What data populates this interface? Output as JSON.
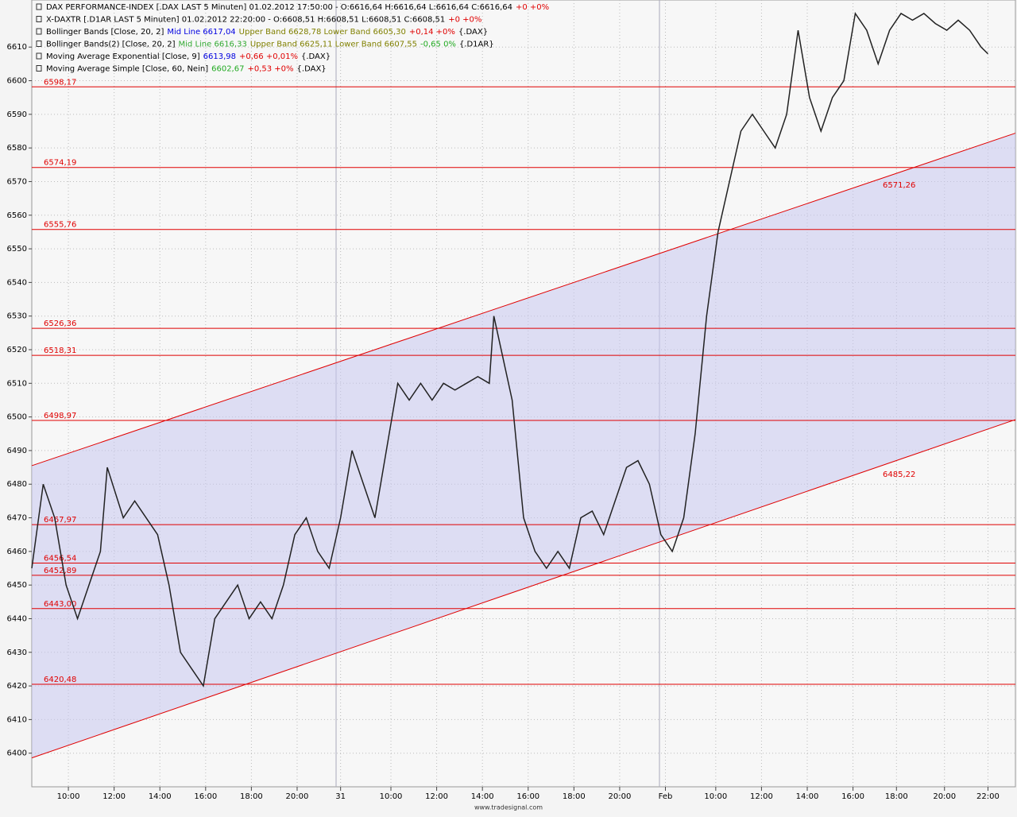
{
  "chart_data": {
    "type": "line",
    "legend": [
      {
        "parts": [
          "DAX PERFORMANCE-INDEX [.DAX LAST 5 Minuten] 01.02.2012 17:50:00 - O:6616,64 H:6616,64 L:6616,64 C:6616,64",
          "+0 +0%"
        ],
        "colors": [
          "#000000",
          "#e00000"
        ]
      },
      {
        "parts": [
          "X-DAXTR [.D1AR LAST 5 Minuten] 01.02.2012 22:20:00 - O:6608,51 H:6608,51 L:6608,51 C:6608,51",
          "+0 +0%"
        ],
        "colors": [
          "#000000",
          "#e00000"
        ]
      },
      {
        "parts": [
          "Bollinger Bands [Close, 20, 2]",
          "Mid Line 6617,04",
          "Upper Band 6628,78 Lower Band 6605,30",
          "+0,14 +0%",
          "{.DAX}"
        ],
        "colors": [
          "#000000",
          "#0000e0",
          "#808000",
          "#e00000",
          "#000000"
        ]
      },
      {
        "parts": [
          "Bollinger Bands(2) [Close, 20, 2]",
          "Mid Line 6616,33",
          "Upper Band 6625,11 Lower Band 6607,55",
          "-0,65 0%",
          "{.D1AR}"
        ],
        "colors": [
          "#000000",
          "#33aa33",
          "#808000",
          "#22aa22",
          "#000000"
        ]
      },
      {
        "parts": [
          "Moving Average Exponential [Close, 9]",
          "6613,98",
          "+0,66 +0,01%",
          "{.DAX}"
        ],
        "colors": [
          "#000000",
          "#0000e0",
          "#e00000",
          "#000000"
        ]
      },
      {
        "parts": [
          "Moving Average Simple [Close, 60, Nein]",
          "6602,67",
          "+0,53 +0%",
          "{.DAX}"
        ],
        "colors": [
          "#000000",
          "#22aa22",
          "#e00000",
          "#000000"
        ]
      }
    ],
    "footer": "www.tradesignal.com",
    "xlim": [
      0,
      43
    ],
    "xticks": [
      {
        "value": 1.6,
        "label": "10:00"
      },
      {
        "value": 3.6,
        "label": "12:00"
      },
      {
        "value": 5.6,
        "label": "14:00"
      },
      {
        "value": 7.6,
        "label": "16:00"
      },
      {
        "value": 9.6,
        "label": "18:00"
      },
      {
        "value": 11.6,
        "label": "20:00"
      },
      {
        "value": 13.5,
        "label": "31"
      },
      {
        "value": 15.7,
        "label": "10:00"
      },
      {
        "value": 17.7,
        "label": "12:00"
      },
      {
        "value": 19.7,
        "label": "14:00"
      },
      {
        "value": 21.7,
        "label": "16:00"
      },
      {
        "value": 23.7,
        "label": "18:00"
      },
      {
        "value": 25.7,
        "label": "20:00"
      },
      {
        "value": 27.7,
        "label": "Feb"
      },
      {
        "value": 29.9,
        "label": "10:00"
      },
      {
        "value": 31.9,
        "label": "12:00"
      },
      {
        "value": 33.9,
        "label": "14:00"
      },
      {
        "value": 35.9,
        "label": "16:00"
      },
      {
        "value": 37.8,
        "label": "18:00"
      },
      {
        "value": 39.9,
        "label": "20:00"
      },
      {
        "value": 41.8,
        "label": "22:00"
      }
    ],
    "ylim": [
      6390,
      6624
    ],
    "yticks": [
      6400,
      6410,
      6420,
      6430,
      6440,
      6450,
      6460,
      6470,
      6480,
      6490,
      6500,
      6510,
      6520,
      6530,
      6540,
      6550,
      6560,
      6570,
      6580,
      6590,
      6600,
      6610
    ],
    "grid": true,
    "levels": {
      "values": [
        6598.17,
        6574.19,
        6555.76,
        6526.36,
        6518.31,
        6498.97,
        6467.97,
        6456.54,
        6452.89,
        6443,
        6420.48
      ],
      "value_labels": [
        "6598,17",
        "6574,19",
        "6555,76",
        "6526,36",
        "6518,31",
        "6498,97",
        "6467,97",
        "6456,54",
        "6452,89",
        "6443,00",
        "6420,48"
      ],
      "color": "#e00000"
    },
    "channel": {
      "x": [
        0,
        43
      ],
      "upper": [
        6485.5,
        6584.4
      ],
      "lower": [
        6398.6,
        6499.2
      ],
      "color": "#e00000",
      "fill": "#c8c8f0"
    },
    "annotations": [
      {
        "x": 37.2,
        "value": 6571.26,
        "label": "6571,26"
      },
      {
        "x": 37.2,
        "value": 6485.22,
        "label": "6485,22"
      }
    ],
    "series": [
      {
        "name": "DAX PERFORMANCE-INDEX",
        "color": "#222222",
        "x": [
          0,
          0.5,
          1,
          1.5,
          2,
          2.5,
          3,
          3.3,
          4,
          4.5,
          5,
          5.5,
          6,
          6.5,
          7,
          7.5,
          8,
          8.5,
          9,
          9.5,
          10,
          10.5,
          11,
          11.5,
          12,
          12.5,
          13,
          13.5,
          14,
          14.5,
          15,
          15.5,
          16,
          16.5,
          17,
          17.5,
          18,
          18.5,
          19,
          19.5,
          20,
          20.2,
          21,
          21.5,
          22,
          22.5,
          23,
          23.5,
          24,
          24.5,
          25,
          25.5,
          26,
          26.5,
          27,
          27.5,
          28,
          28.5,
          29,
          29.5,
          30,
          30.5,
          31,
          31.5,
          32,
          32.5,
          33,
          33.5,
          34,
          34.5,
          35,
          35.5,
          36,
          36.5,
          37,
          37.5,
          38,
          38.5,
          39,
          39.5,
          40,
          40.5,
          41,
          41.5,
          41.8
        ],
        "values": [
          6455,
          6480,
          6470,
          6450,
          6440,
          6450,
          6460,
          6485,
          6470,
          6475,
          6470,
          6465,
          6450,
          6430,
          6425,
          6420,
          6440,
          6445,
          6450,
          6440,
          6445,
          6440,
          6450,
          6465,
          6470,
          6460,
          6455,
          6470,
          6490,
          6480,
          6470,
          6490,
          6510,
          6505,
          6510,
          6505,
          6510,
          6508,
          6510,
          6512,
          6510,
          6530,
          6505,
          6470,
          6460,
          6455,
          6460,
          6455,
          6470,
          6472,
          6465,
          6475,
          6485,
          6487,
          6480,
          6465,
          6460,
          6470,
          6495,
          6530,
          6555,
          6570,
          6585,
          6590,
          6585,
          6580,
          6590,
          6615,
          6595,
          6585,
          6595,
          6600,
          6620,
          6615,
          6605,
          6615,
          6620,
          6618,
          6620,
          6617,
          6615,
          6618,
          6615,
          6610,
          6608
        ]
      }
    ]
  }
}
